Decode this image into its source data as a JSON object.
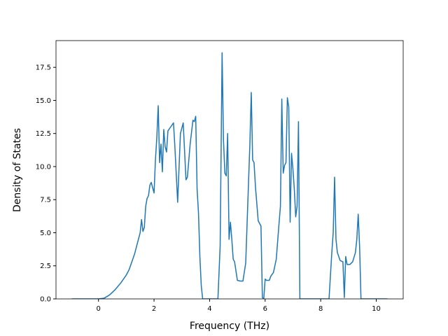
{
  "chart_data": {
    "type": "line",
    "xlabel": "Frequency (THz)",
    "ylabel": "Density of States",
    "xlim": [
      -1.53,
      10.97
    ],
    "ylim": [
      0,
      19.52
    ],
    "xticks": [
      0,
      2,
      4,
      6,
      8,
      10
    ],
    "yticks": [
      {
        "value": 0,
        "label": "0.0"
      },
      2.5,
      {
        "value": 5,
        "label": "5.0"
      },
      7.5,
      {
        "value": 10,
        "label": "10.0"
      },
      12.5,
      {
        "value": 15,
        "label": "15.0"
      },
      17.5
    ],
    "color": "#1f77b4",
    "x": [
      -0.96,
      0,
      0.2,
      0.4,
      0.6,
      0.8,
      0.9,
      1.0,
      1.1,
      1.2,
      1.3,
      1.4,
      1.5,
      1.55,
      1.6,
      1.65,
      1.7,
      1.75,
      1.8,
      1.85,
      1.9,
      1.95,
      2.0,
      2.05,
      2.1,
      2.15,
      2.2,
      2.25,
      2.3,
      2.35,
      2.4,
      2.45,
      2.5,
      2.6,
      2.7,
      2.75,
      2.85,
      2.95,
      3.05,
      3.15,
      3.2,
      3.3,
      3.4,
      3.45,
      3.5,
      3.55,
      3.6,
      3.65,
      3.7,
      3.75,
      4.3,
      4.38,
      4.45,
      4.5,
      4.55,
      4.6,
      4.65,
      4.7,
      4.75,
      4.8,
      4.85,
      4.9,
      5.0,
      5.1,
      5.2,
      5.3,
      5.45,
      5.5,
      5.55,
      5.6,
      5.65,
      5.75,
      5.85,
      5.9,
      5.95,
      6.0,
      6.05,
      6.15,
      6.2,
      6.3,
      6.4,
      6.5,
      6.55,
      6.6,
      6.65,
      6.7,
      6.75,
      6.8,
      6.85,
      6.9,
      6.95,
      7.0,
      7.05,
      7.1,
      7.15,
      7.2,
      7.25,
      8.3,
      8.4,
      8.45,
      8.5,
      8.55,
      8.6,
      8.7,
      8.8,
      8.85,
      8.9,
      8.95,
      9.05,
      9.15,
      9.25,
      9.3,
      9.35,
      9.4,
      9.45,
      10.4
    ],
    "values": [
      0,
      0,
      0.05,
      0.3,
      0.7,
      1.2,
      1.5,
      1.8,
      2.2,
      2.8,
      3.4,
      4.2,
      5.0,
      6.0,
      5.1,
      5.4,
      7.0,
      7.6,
      7.8,
      8.6,
      8.8,
      8.4,
      8.0,
      10.5,
      12.2,
      14.6,
      10.3,
      11.7,
      9.6,
      12.8,
      11.5,
      11.1,
      12.7,
      13.0,
      13.3,
      11.5,
      7.3,
      12.5,
      13.3,
      9.0,
      9.2,
      11.7,
      13.5,
      13.4,
      13.8,
      8.3,
      6.5,
      3.2,
      1.0,
      0,
      0,
      4.0,
      18.6,
      12.0,
      9.5,
      9.3,
      12.5,
      4.5,
      5.8,
      4.5,
      3.0,
      2.8,
      1.4,
      1.35,
      1.35,
      2.7,
      11.7,
      15.6,
      10.5,
      10.3,
      8.5,
      5.9,
      5.5,
      0.1,
      0,
      1.5,
      1.4,
      1.4,
      1.7,
      2.0,
      3.0,
      5.7,
      7.0,
      15.1,
      9.5,
      10.1,
      10.3,
      15.2,
      14.5,
      5.8,
      11.0,
      9.8,
      8.3,
      6.2,
      7.0,
      13.4,
      0,
      0,
      3.5,
      5.0,
      9.2,
      4.5,
      3.5,
      2.9,
      2.8,
      0.1,
      3.2,
      2.6,
      2.6,
      2.8,
      3.5,
      4.5,
      6.4,
      4.0,
      0,
      0
    ]
  }
}
